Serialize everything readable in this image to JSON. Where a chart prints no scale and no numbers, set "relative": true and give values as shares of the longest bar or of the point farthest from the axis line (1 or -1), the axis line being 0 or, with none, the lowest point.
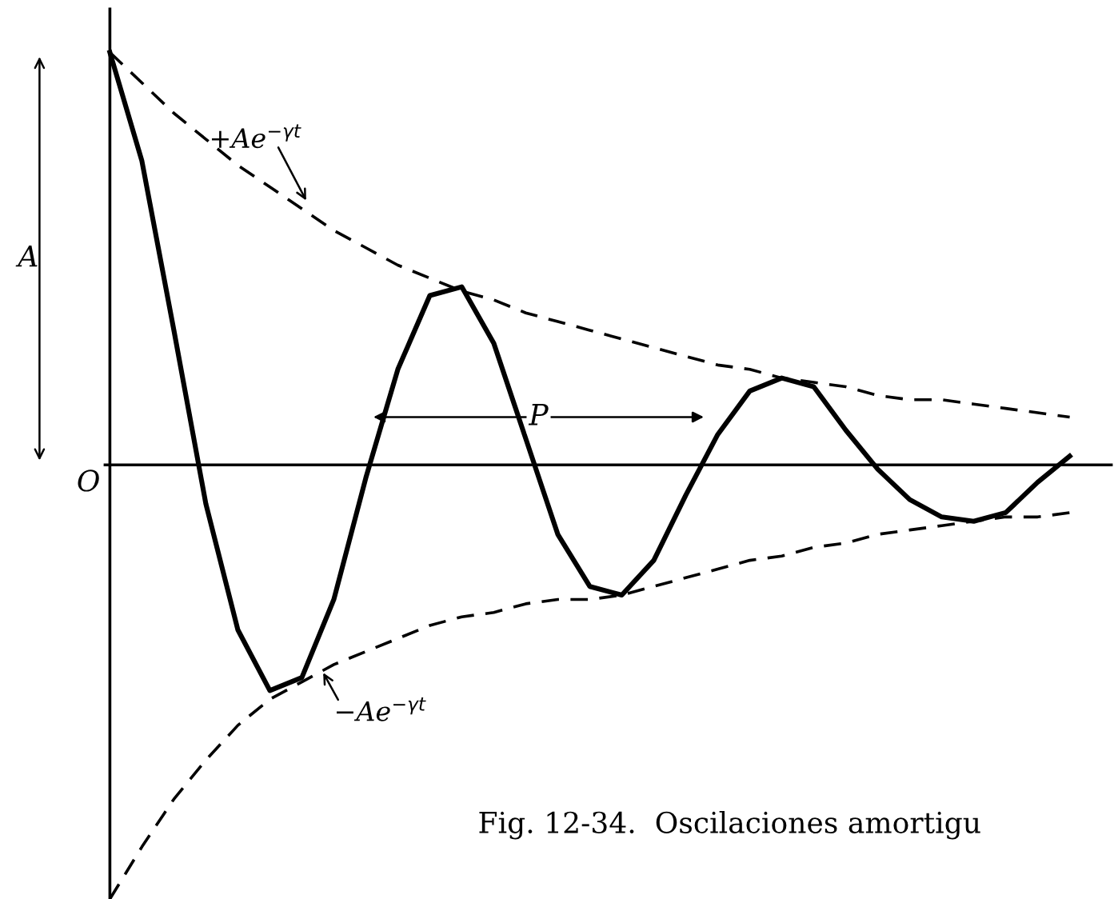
{
  "chart_data": {
    "type": "line",
    "relative": true,
    "legend": false,
    "marker": "none",
    "categories": [
      null,
      null,
      null,
      null,
      null,
      null,
      null,
      null,
      null,
      null,
      null,
      null,
      null,
      null,
      null,
      null,
      null,
      null,
      null,
      null,
      null,
      null,
      null,
      null,
      null,
      null,
      null,
      null,
      null,
      null,
      null,
      null
    ],
    "series": [
      {
        "color": "#000000",
        "line_style": "solid",
        "values": [
          0.95,
          0.7,
          0.31,
          -0.09,
          -0.38,
          -0.52,
          -0.49,
          -0.31,
          -0.03,
          0.22,
          0.39,
          0.41,
          0.28,
          0.06,
          -0.16,
          -0.28,
          -0.3,
          -0.22,
          -0.07,
          0.07,
          0.17,
          0.2,
          0.18,
          0.08,
          -0.01,
          -0.08,
          -0.12,
          -0.13,
          -0.11,
          -0.04,
          0.02,
          null
        ]
      },
      {
        "color": "#000000",
        "line_style": "dashed",
        "values": [
          0.95,
          0.88,
          0.81,
          0.75,
          0.69,
          0.64,
          0.59,
          0.54,
          0.5,
          0.46,
          0.43,
          0.4,
          0.38,
          0.35,
          0.33,
          0.31,
          0.29,
          0.27,
          0.25,
          0.23,
          0.22,
          0.2,
          0.19,
          0.18,
          0.16,
          0.15,
          0.15,
          0.14,
          0.13,
          0.12,
          0.11,
          null
        ]
      },
      {
        "color": "#000000",
        "line_style": "dashed",
        "values": [
          -1,
          -0.88,
          -0.77,
          -0.68,
          -0.6,
          -0.54,
          -0.5,
          -0.46,
          -0.43,
          -0.4,
          -0.37,
          -0.35,
          -0.34,
          -0.32,
          -0.31,
          -0.31,
          -0.3,
          -0.28,
          -0.26,
          -0.24,
          -0.22,
          -0.21,
          -0.19,
          -0.18,
          -0.16,
          -0.15,
          -0.14,
          -0.13,
          -0.12,
          -0.12,
          -0.11,
          null
        ]
      }
    ],
    "annotations": [
      "+Ae$^{−γt}$",
      "−Ae$^{−γt}$",
      "A",
      "O",
      "P",
      "Fig. 12-34.  Oscilaciones amortigu"
    ]
  }
}
